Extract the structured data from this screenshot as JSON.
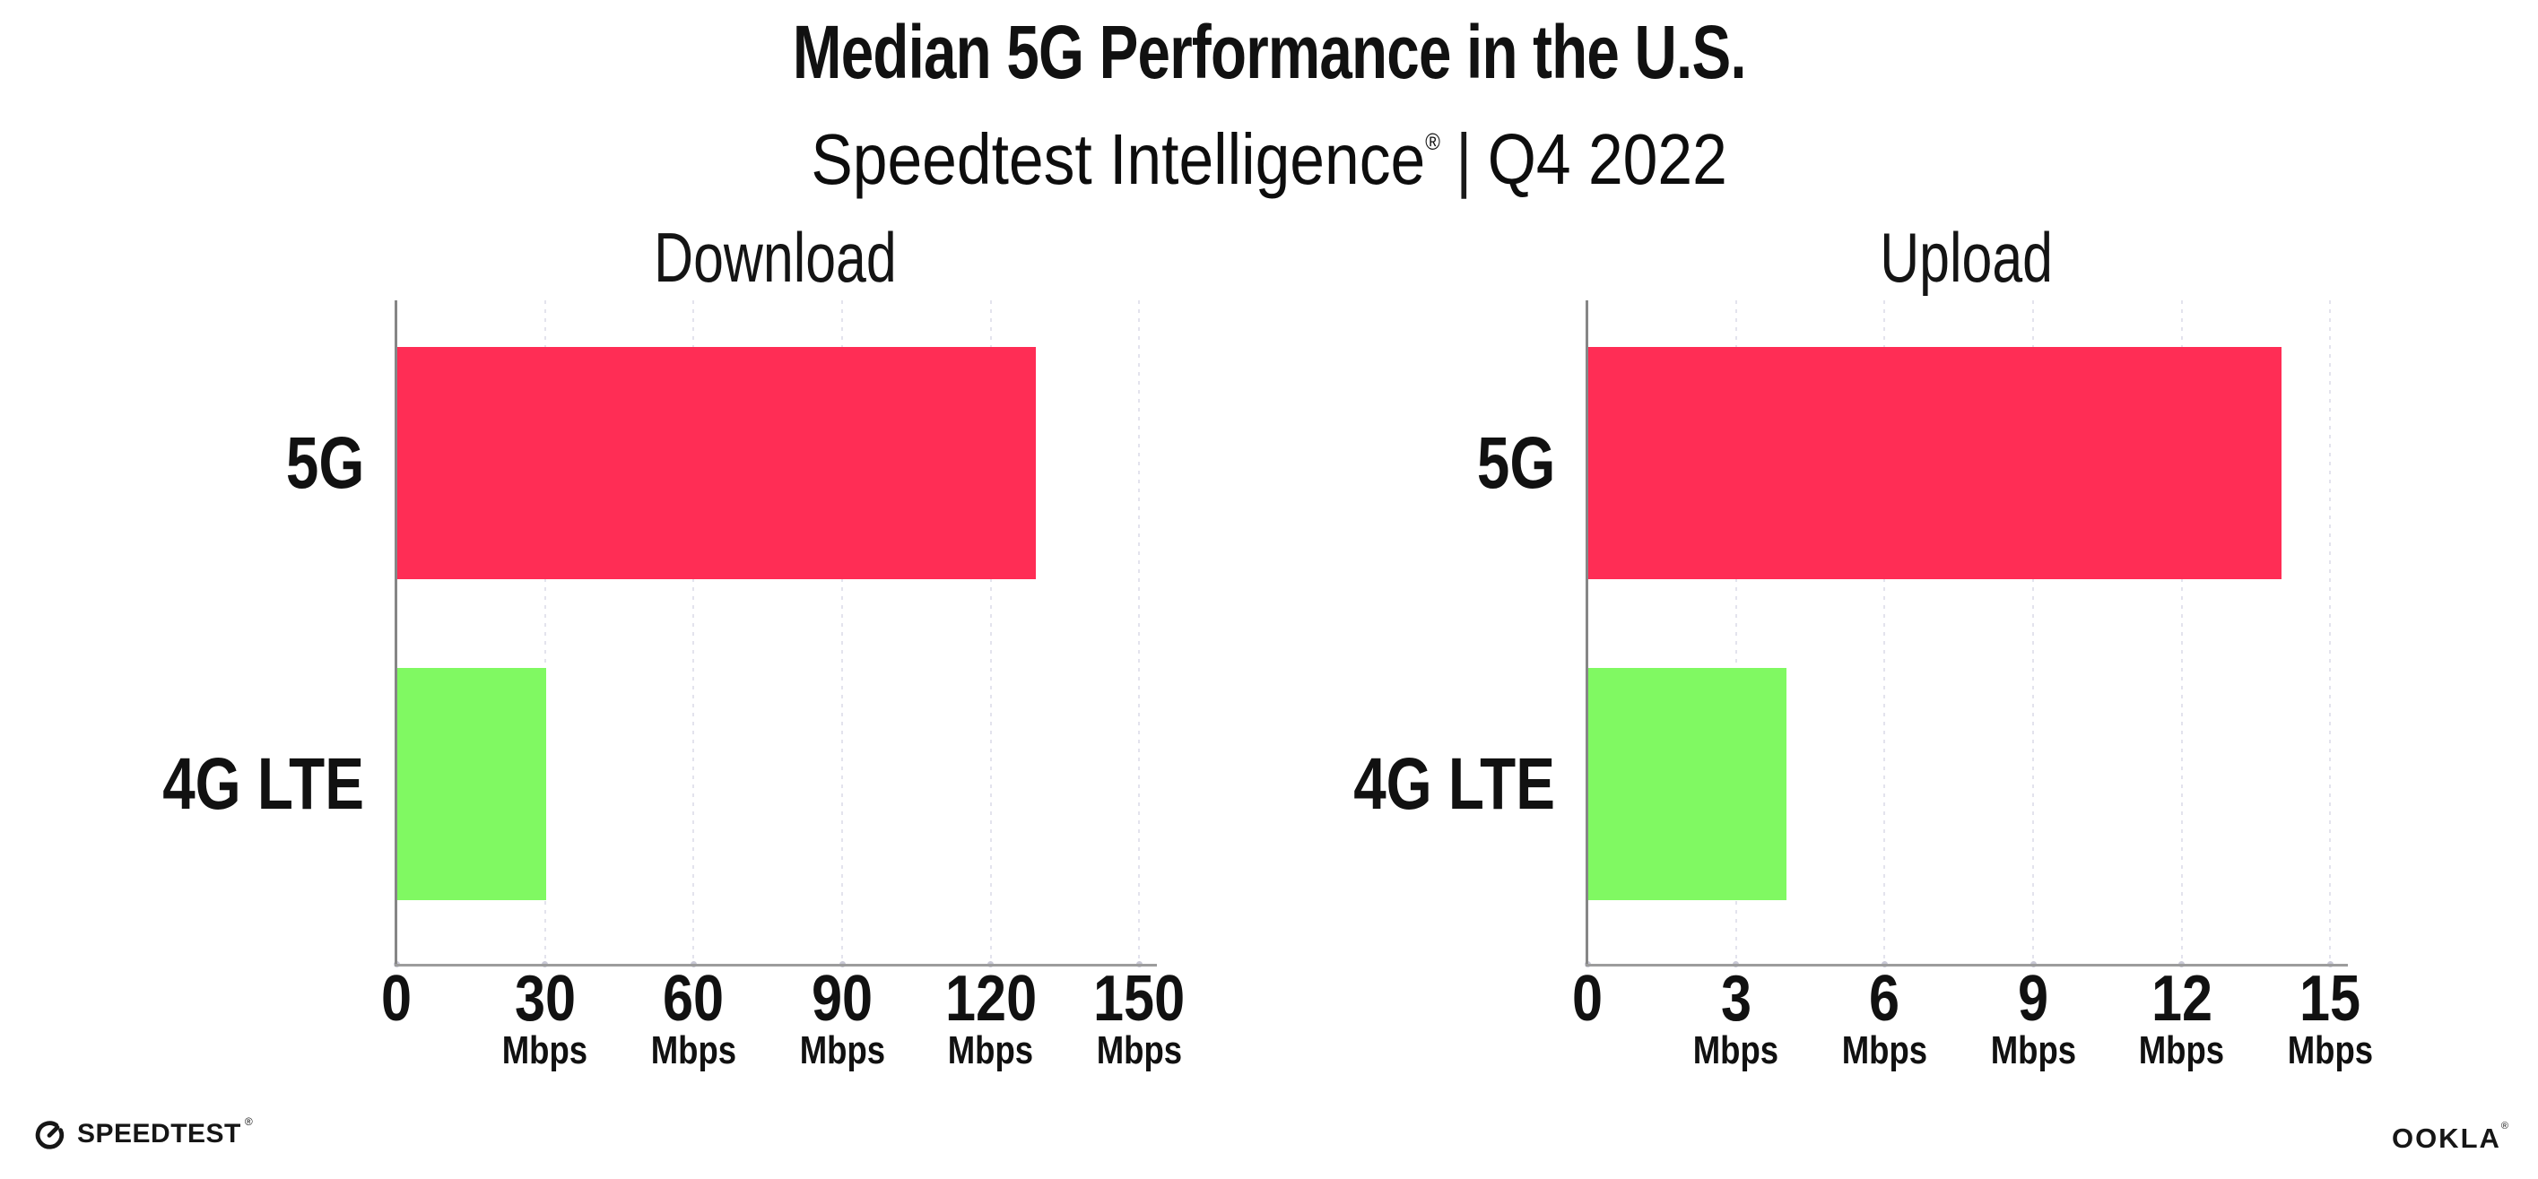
{
  "header": {
    "title": "Median 5G Performance in the U.S.",
    "brand": "Speedtest Intelligence",
    "registered_mark": "®",
    "divider": "|",
    "period": "Q4 2022"
  },
  "chart_data": [
    {
      "type": "bar",
      "orientation": "horizontal",
      "title": "Download",
      "categories": [
        "5G",
        "4G LTE"
      ],
      "values": [
        129,
        30
      ],
      "unit": "Mbps",
      "xlim": [
        0,
        150
      ],
      "xticks": [
        0,
        30,
        60,
        90,
        120,
        150
      ],
      "grid": "vertical-dotted",
      "legend": "none",
      "bar_colors": [
        "#FF2D55",
        "#80F962"
      ]
    },
    {
      "type": "bar",
      "orientation": "horizontal",
      "title": "Upload",
      "categories": [
        "5G",
        "4G LTE"
      ],
      "values": [
        14,
        4
      ],
      "unit": "Mbps",
      "xlim": [
        0,
        15
      ],
      "xticks": [
        0,
        3,
        6,
        9,
        12,
        15
      ],
      "grid": "vertical-dotted",
      "legend": "none",
      "bar_colors": [
        "#FF2D55",
        "#80F962"
      ]
    }
  ],
  "colors": {
    "bar_5g": "#FF2D55",
    "bar_4g_lte": "#80F962",
    "axis_spine": "#868686",
    "axis_baseline": "#9C9C9C",
    "gridline": "#E3E3ED",
    "tick_dot": "#C9C9D6",
    "text": "#111111",
    "background": "#FFFFFF"
  },
  "footer": {
    "speedtest_wordmark": "SPEEDTEST",
    "speedtest_mark": "®",
    "ookla_wordmark": "OOKLA",
    "ookla_mark": "®"
  }
}
